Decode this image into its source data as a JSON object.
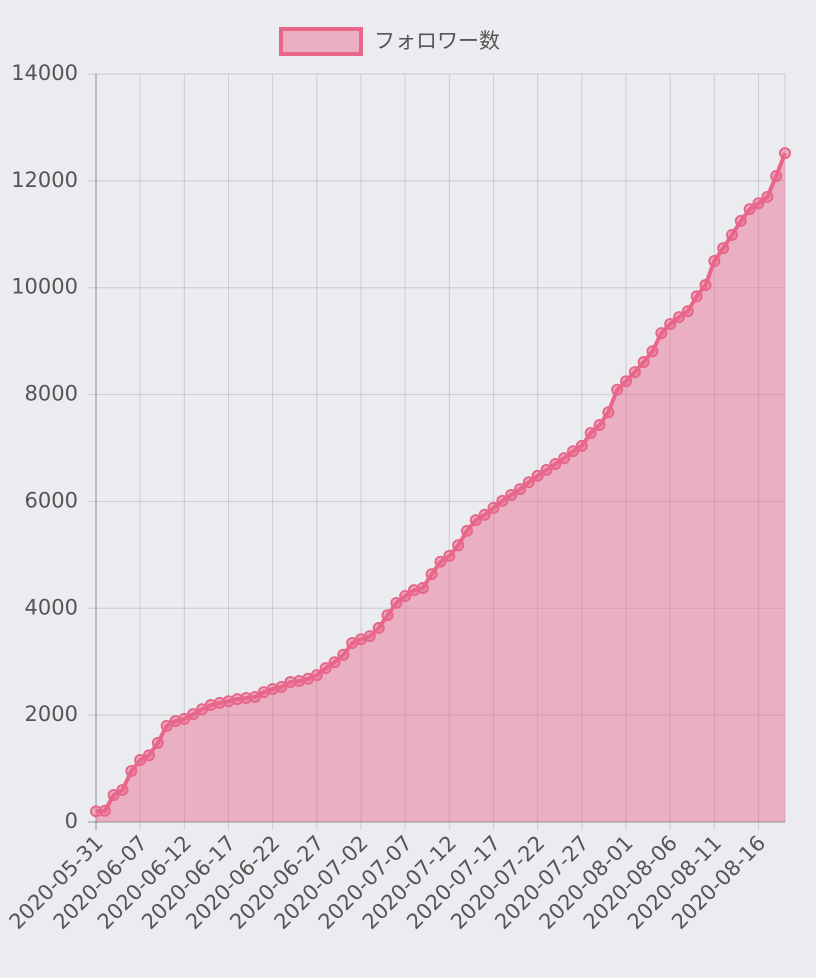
{
  "chart_data": {
    "type": "area",
    "categories": [
      "2020-05-31",
      null,
      null,
      null,
      null,
      "2020-06-07",
      null,
      null,
      null,
      null,
      "2020-06-12",
      null,
      null,
      null,
      null,
      "2020-06-17",
      null,
      null,
      null,
      null,
      "2020-06-22",
      null,
      null,
      null,
      null,
      "2020-06-27",
      null,
      null,
      null,
      null,
      "2020-07-02",
      null,
      null,
      null,
      null,
      "2020-07-07",
      null,
      null,
      null,
      null,
      "2020-07-12",
      null,
      null,
      null,
      null,
      "2020-07-17",
      null,
      null,
      null,
      null,
      "2020-07-22",
      null,
      null,
      null,
      null,
      "2020-07-27",
      null,
      null,
      null,
      null,
      "2020-08-01",
      null,
      null,
      null,
      null,
      "2020-08-06",
      null,
      null,
      null,
      null,
      "2020-08-11",
      null,
      null,
      null,
      null,
      "2020-08-16",
      null,
      null,
      null
    ],
    "series": [
      {
        "name": "フォロワー数",
        "color": "#e8668a",
        "fill": "rgba(232,102,138,0.45)",
        "values": [
          200,
          210,
          505,
          600,
          955,
          1160,
          1250,
          1480,
          1800,
          1890,
          1930,
          2020,
          2110,
          2190,
          2230,
          2260,
          2300,
          2320,
          2340,
          2430,
          2490,
          2530,
          2620,
          2640,
          2680,
          2750,
          2880,
          2990,
          3130,
          3350,
          3420,
          3480,
          3630,
          3870,
          4100,
          4230,
          4340,
          4380,
          4640,
          4870,
          4980,
          5180,
          5450,
          5650,
          5750,
          5880,
          6010,
          6120,
          6230,
          6360,
          6480,
          6590,
          6700,
          6810,
          6940,
          7040,
          7280,
          7430,
          7670,
          8090,
          8250,
          8420,
          8610,
          8810,
          9150,
          9320,
          9450,
          9560,
          9840,
          10050,
          10500,
          10740,
          10990,
          11250,
          11470,
          11580,
          11700,
          12090,
          12520
        ]
      }
    ],
    "ylim": [
      0,
      14000
    ],
    "yticks": [
      0,
      2000,
      4000,
      6000,
      8000,
      10000,
      12000,
      14000
    ],
    "grid": true,
    "legend": "top"
  }
}
